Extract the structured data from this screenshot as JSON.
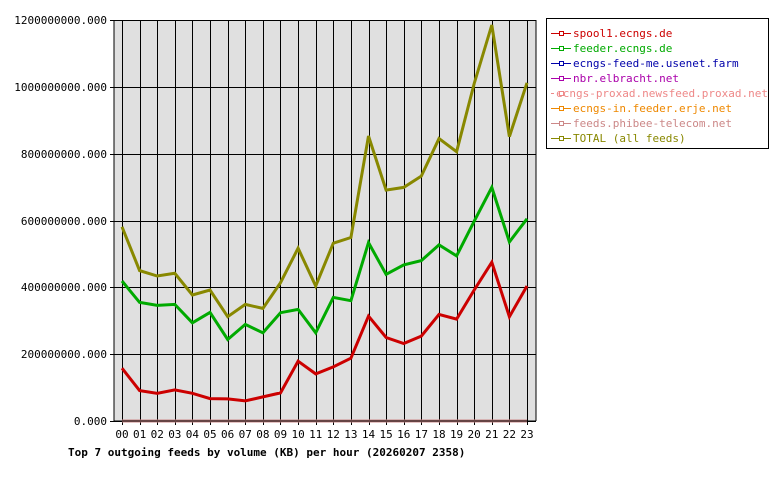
{
  "chart_data": {
    "type": "line",
    "title": "Top 7 outgoing feeds by volume (KB) per hour (20260207 2358)",
    "xlabel": "",
    "ylabel": "",
    "ylim": [
      0,
      1200000000
    ],
    "grid": true,
    "legend_position": "right",
    "y_ticks": [
      "0.000",
      "200000000.000",
      "400000000.000",
      "600000000.000",
      "800000000.000",
      "1000000000.000",
      "1200000000.000"
    ],
    "y_tick_values": [
      0,
      200000000,
      400000000,
      600000000,
      800000000,
      1000000000,
      1200000000
    ],
    "categories": [
      "00",
      "01",
      "02",
      "03",
      "04",
      "05",
      "06",
      "07",
      "08",
      "09",
      "10",
      "11",
      "12",
      "13",
      "14",
      "15",
      "16",
      "17",
      "18",
      "19",
      "20",
      "21",
      "22",
      "23"
    ],
    "series": [
      {
        "name": "spool1.ecngs.de",
        "color": "#cc0000",
        "values": [
          158000000,
          91000000,
          83000000,
          93000000,
          83000000,
          67000000,
          66000000,
          60000000,
          72000000,
          84000000,
          179000000,
          141000000,
          162000000,
          188000000,
          314000000,
          250000000,
          232000000,
          254000000,
          319000000,
          305000000,
          392000000,
          475000000,
          312000000,
          404000000
        ]
      },
      {
        "name": "feeder.ecngs.de",
        "color": "#00aa00",
        "values": [
          419000000,
          355000000,
          346000000,
          349000000,
          294000000,
          325000000,
          244000000,
          289000000,
          264000000,
          324000000,
          334000000,
          264000000,
          370000000,
          360000000,
          534000000,
          439000000,
          467000000,
          480000000,
          527000000,
          494000000,
          598000000,
          699000000,
          536000000,
          605000000
        ]
      },
      {
        "name": "ecngs-feed-me.usenet.farm",
        "color": "#0000aa",
        "values": [
          0,
          0,
          0,
          0,
          0,
          0,
          0,
          0,
          0,
          0,
          0,
          0,
          0,
          0,
          0,
          0,
          0,
          0,
          0,
          0,
          0,
          0,
          0,
          0
        ]
      },
      {
        "name": "nbr.elbracht.net",
        "color": "#aa00aa",
        "values": [
          0,
          0,
          0,
          0,
          0,
          0,
          0,
          0,
          0,
          0,
          0,
          0,
          0,
          0,
          0,
          0,
          0,
          0,
          0,
          0,
          0,
          0,
          0,
          0
        ]
      },
      {
        "name": "ecngs-proxad.newsfeed.proxad.net",
        "color": "#ee8888",
        "values": [
          0,
          0,
          0,
          0,
          0,
          0,
          0,
          0,
          0,
          0,
          0,
          0,
          0,
          0,
          0,
          0,
          0,
          0,
          0,
          0,
          0,
          0,
          0,
          0
        ]
      },
      {
        "name": "ecngs-in.feeder.erje.net",
        "color": "#ee8800",
        "values": [
          0,
          0,
          0,
          0,
          0,
          0,
          0,
          0,
          0,
          0,
          0,
          0,
          0,
          0,
          0,
          0,
          0,
          0,
          0,
          0,
          0,
          0,
          0,
          0
        ]
      },
      {
        "name": "feeds.phibee-telecom.net",
        "color": "#cc8888",
        "values": [
          0,
          0,
          0,
          0,
          0,
          0,
          0,
          0,
          0,
          0,
          0,
          0,
          0,
          0,
          0,
          0,
          0,
          0,
          0,
          0,
          0,
          0,
          0,
          0
        ]
      },
      {
        "name": "TOTAL (all feeds)",
        "color": "#888800",
        "values": [
          581000000,
          450000000,
          434000000,
          442000000,
          377000000,
          392000000,
          312000000,
          349000000,
          337000000,
          414000000,
          517000000,
          404000000,
          532000000,
          549000000,
          853000000,
          691000000,
          699000000,
          733000000,
          845000000,
          806000000,
          1010000000,
          1185000000,
          851000000,
          1012000000
        ]
      }
    ]
  },
  "legend": {
    "items": [
      {
        "label": "spool1.ecngs.de",
        "color": "#cc0000"
      },
      {
        "label": "feeder.ecngs.de",
        "color": "#00aa00"
      },
      {
        "label": "ecngs-feed-me.usenet.farm",
        "color": "#0000aa"
      },
      {
        "label": "nbr.elbracht.net",
        "color": "#aa00aa"
      },
      {
        "label": "ecngs-proxad.newsfeed.proxad.net",
        "color": "#ee8888"
      },
      {
        "label": "ecngs-in.feeder.erje.net",
        "color": "#ee8800"
      },
      {
        "label": "feeds.phibee-telecom.net",
        "color": "#cc8888"
      },
      {
        "label": "TOTAL (all feeds)",
        "color": "#888800"
      }
    ]
  },
  "colors": {
    "plot_background": "#e0e0e0",
    "grid": "#000000",
    "page_background": "#ffffff"
  }
}
